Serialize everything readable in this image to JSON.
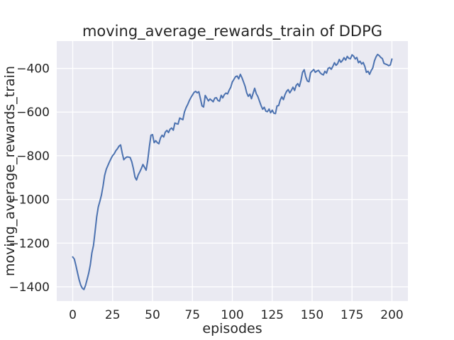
{
  "chart_data": {
    "type": "line",
    "title": "moving_average_rewards_train of DDPG",
    "xlabel": "episodes",
    "ylabel": "moving_average_rewards_train",
    "legend": "none",
    "grid": true,
    "xlim": [
      -10,
      210
    ],
    "ylim": [
      -1465,
      -275
    ],
    "xticks": [
      {
        "value": 0,
        "label": "0"
      },
      {
        "value": 25,
        "label": "25"
      },
      {
        "value": 50,
        "label": "50"
      },
      {
        "value": 75,
        "label": "75"
      },
      {
        "value": 100,
        "label": "100"
      },
      {
        "value": 125,
        "label": "125"
      },
      {
        "value": 150,
        "label": "150"
      },
      {
        "value": 175,
        "label": "175"
      },
      {
        "value": 200,
        "label": "200"
      }
    ],
    "yticks": [
      {
        "value": -400,
        "label": "−400"
      },
      {
        "value": -600,
        "label": "−600"
      },
      {
        "value": -800,
        "label": "−800"
      },
      {
        "value": -1000,
        "label": "−1000"
      },
      {
        "value": -1200,
        "label": "−1200"
      },
      {
        "value": -1400,
        "label": "−1400"
      }
    ],
    "colors": {
      "figure_bg": "#ffffff",
      "plot_bg": "#eaeaf2",
      "grid": "#ffffff",
      "line": "#4c72b0",
      "text": "#262626"
    },
    "series": [
      {
        "name": "moving_average_rewards_train",
        "points": [
          [
            0,
            -1263
          ],
          [
            1,
            -1273
          ],
          [
            2,
            -1302
          ],
          [
            3,
            -1336
          ],
          [
            4,
            -1367
          ],
          [
            5,
            -1392
          ],
          [
            6,
            -1406
          ],
          [
            7,
            -1412
          ],
          [
            8,
            -1394
          ],
          [
            9,
            -1366
          ],
          [
            10,
            -1338
          ],
          [
            11,
            -1300
          ],
          [
            12,
            -1245
          ],
          [
            13,
            -1210
          ],
          [
            14,
            -1148
          ],
          [
            15,
            -1080
          ],
          [
            16,
            -1035
          ],
          [
            17,
            -1008
          ],
          [
            18,
            -980
          ],
          [
            19,
            -938
          ],
          [
            20,
            -890
          ],
          [
            21,
            -862
          ],
          [
            22,
            -845
          ],
          [
            23,
            -828
          ],
          [
            24,
            -813
          ],
          [
            25,
            -799
          ],
          [
            26,
            -791
          ],
          [
            27,
            -777
          ],
          [
            28,
            -768
          ],
          [
            29,
            -756
          ],
          [
            30,
            -750
          ],
          [
            31,
            -788
          ],
          [
            32,
            -818
          ],
          [
            33,
            -810
          ],
          [
            34,
            -805
          ],
          [
            35,
            -806
          ],
          [
            36,
            -808
          ],
          [
            37,
            -828
          ],
          [
            38,
            -858
          ],
          [
            39,
            -898
          ],
          [
            40,
            -911
          ],
          [
            41,
            -888
          ],
          [
            42,
            -874
          ],
          [
            43,
            -858
          ],
          [
            44,
            -840
          ],
          [
            45,
            -853
          ],
          [
            46,
            -866
          ],
          [
            47,
            -820
          ],
          [
            48,
            -760
          ],
          [
            49,
            -706
          ],
          [
            50,
            -703
          ],
          [
            51,
            -740
          ],
          [
            52,
            -731
          ],
          [
            53,
            -740
          ],
          [
            54,
            -745
          ],
          [
            55,
            -718
          ],
          [
            56,
            -706
          ],
          [
            57,
            -714
          ],
          [
            58,
            -692
          ],
          [
            59,
            -684
          ],
          [
            60,
            -694
          ],
          [
            61,
            -678
          ],
          [
            62,
            -673
          ],
          [
            63,
            -683
          ],
          [
            64,
            -650
          ],
          [
            65,
            -653
          ],
          [
            66,
            -655
          ],
          [
            67,
            -627
          ],
          [
            68,
            -631
          ],
          [
            69,
            -635
          ],
          [
            70,
            -600
          ],
          [
            71,
            -580
          ],
          [
            72,
            -566
          ],
          [
            73,
            -548
          ],
          [
            74,
            -534
          ],
          [
            75,
            -522
          ],
          [
            76,
            -510
          ],
          [
            77,
            -505
          ],
          [
            78,
            -512
          ],
          [
            79,
            -507
          ],
          [
            80,
            -538
          ],
          [
            81,
            -572
          ],
          [
            82,
            -577
          ],
          [
            83,
            -524
          ],
          [
            84,
            -536
          ],
          [
            85,
            -549
          ],
          [
            86,
            -540
          ],
          [
            87,
            -546
          ],
          [
            88,
            -553
          ],
          [
            89,
            -536
          ],
          [
            90,
            -534
          ],
          [
            91,
            -547
          ],
          [
            92,
            -550
          ],
          [
            93,
            -523
          ],
          [
            94,
            -535
          ],
          [
            95,
            -520
          ],
          [
            96,
            -513
          ],
          [
            97,
            -517
          ],
          [
            98,
            -500
          ],
          [
            99,
            -486
          ],
          [
            100,
            -462
          ],
          [
            101,
            -450
          ],
          [
            102,
            -438
          ],
          [
            103,
            -435
          ],
          [
            104,
            -448
          ],
          [
            105,
            -427
          ],
          [
            106,
            -442
          ],
          [
            107,
            -462
          ],
          [
            108,
            -482
          ],
          [
            109,
            -512
          ],
          [
            110,
            -528
          ],
          [
            111,
            -518
          ],
          [
            112,
            -539
          ],
          [
            113,
            -514
          ],
          [
            114,
            -491
          ],
          [
            115,
            -516
          ],
          [
            116,
            -529
          ],
          [
            117,
            -550
          ],
          [
            118,
            -570
          ],
          [
            119,
            -587
          ],
          [
            120,
            -578
          ],
          [
            121,
            -596
          ],
          [
            122,
            -598
          ],
          [
            123,
            -586
          ],
          [
            124,
            -603
          ],
          [
            125,
            -591
          ],
          [
            126,
            -605
          ],
          [
            127,
            -607
          ],
          [
            128,
            -572
          ],
          [
            129,
            -570
          ],
          [
            130,
            -545
          ],
          [
            131,
            -530
          ],
          [
            132,
            -543
          ],
          [
            133,
            -520
          ],
          [
            134,
            -505
          ],
          [
            135,
            -497
          ],
          [
            136,
            -512
          ],
          [
            137,
            -500
          ],
          [
            138,
            -486
          ],
          [
            139,
            -501
          ],
          [
            140,
            -478
          ],
          [
            141,
            -470
          ],
          [
            142,
            -483
          ],
          [
            143,
            -455
          ],
          [
            144,
            -418
          ],
          [
            145,
            -406
          ],
          [
            146,
            -438
          ],
          [
            147,
            -458
          ],
          [
            148,
            -461
          ],
          [
            149,
            -420
          ],
          [
            150,
            -412
          ],
          [
            151,
            -405
          ],
          [
            152,
            -418
          ],
          [
            153,
            -412
          ],
          [
            154,
            -409
          ],
          [
            155,
            -420
          ],
          [
            156,
            -426
          ],
          [
            157,
            -430
          ],
          [
            158,
            -413
          ],
          [
            159,
            -422
          ],
          [
            160,
            -400
          ],
          [
            161,
            -396
          ],
          [
            162,
            -404
          ],
          [
            163,
            -390
          ],
          [
            164,
            -374
          ],
          [
            165,
            -386
          ],
          [
            166,
            -378
          ],
          [
            167,
            -359
          ],
          [
            168,
            -372
          ],
          [
            169,
            -364
          ],
          [
            170,
            -351
          ],
          [
            171,
            -362
          ],
          [
            172,
            -345
          ],
          [
            173,
            -354
          ],
          [
            174,
            -356
          ],
          [
            175,
            -338
          ],
          [
            176,
            -344
          ],
          [
            177,
            -357
          ],
          [
            178,
            -350
          ],
          [
            179,
            -374
          ],
          [
            180,
            -367
          ],
          [
            181,
            -380
          ],
          [
            182,
            -373
          ],
          [
            183,
            -391
          ],
          [
            184,
            -418
          ],
          [
            185,
            -413
          ],
          [
            186,
            -427
          ],
          [
            187,
            -410
          ],
          [
            188,
            -398
          ],
          [
            189,
            -366
          ],
          [
            190,
            -348
          ],
          [
            191,
            -336
          ],
          [
            192,
            -341
          ],
          [
            193,
            -350
          ],
          [
            194,
            -355
          ],
          [
            195,
            -377
          ],
          [
            196,
            -380
          ],
          [
            197,
            -383
          ],
          [
            198,
            -388
          ],
          [
            199,
            -384
          ],
          [
            200,
            -357
          ]
        ]
      }
    ]
  }
}
